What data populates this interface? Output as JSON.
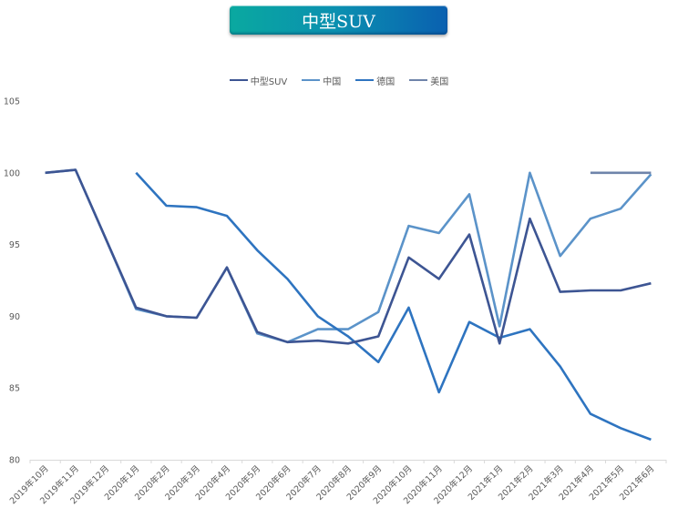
{
  "header": {
    "title": "中型SUV"
  },
  "legend": [
    {
      "label": "中型SUV",
      "color": "#3d5593"
    },
    {
      "label": "中国",
      "color": "#5b93c9"
    },
    {
      "label": "德国",
      "color": "#2e74c0"
    },
    {
      "label": "美国",
      "color": "#6f84aa"
    }
  ],
  "chart_data": {
    "type": "line",
    "title": "中型SUV",
    "xlabel": "",
    "ylabel": "",
    "ylim": [
      80,
      105
    ],
    "yticks": [
      80,
      85,
      90,
      95,
      100,
      105
    ],
    "grid": false,
    "legend_position": "top",
    "categories": [
      "2019年10月",
      "2019年11月",
      "2019年12月",
      "2020年1月",
      "2020年2月",
      "2020年3月",
      "2020年4月",
      "2020年5月",
      "2020年6月",
      "2020年7月",
      "2020年8月",
      "2020年9月",
      "2020年10月",
      "2020年11月",
      "2020年12月",
      "2021年1月",
      "2021年2月",
      "2021年3月",
      "2021年4月",
      "2021年5月",
      "2021年6月"
    ],
    "series": [
      {
        "name": "中型SUV",
        "color": "#3d5593",
        "values": [
          100.0,
          100.2,
          95.4,
          90.6,
          90.0,
          89.9,
          93.4,
          88.9,
          88.2,
          88.3,
          88.1,
          88.6,
          94.1,
          92.6,
          95.7,
          88.1,
          96.8,
          91.7,
          91.8,
          91.8,
          92.3
        ]
      },
      {
        "name": "中国",
        "color": "#5b93c9",
        "values": [
          100.0,
          100.2,
          95.4,
          90.5,
          90.0,
          89.9,
          93.4,
          88.8,
          88.2,
          89.1,
          89.1,
          90.3,
          96.3,
          95.8,
          98.5,
          89.3,
          100.0,
          94.2,
          96.8,
          97.5,
          99.9
        ]
      },
      {
        "name": "德国",
        "color": "#2e74c0",
        "values": [
          null,
          null,
          null,
          100.0,
          97.7,
          97.6,
          97.0,
          94.6,
          92.6,
          90.0,
          88.6,
          86.8,
          90.6,
          84.7,
          89.6,
          88.5,
          89.1,
          86.5,
          83.2,
          82.2,
          81.4
        ]
      },
      {
        "name": "美国",
        "color": "#6f84aa",
        "values": [
          null,
          null,
          null,
          null,
          null,
          null,
          null,
          null,
          null,
          null,
          null,
          null,
          null,
          null,
          null,
          null,
          null,
          null,
          100.0,
          100.0,
          100.0
        ]
      }
    ]
  }
}
